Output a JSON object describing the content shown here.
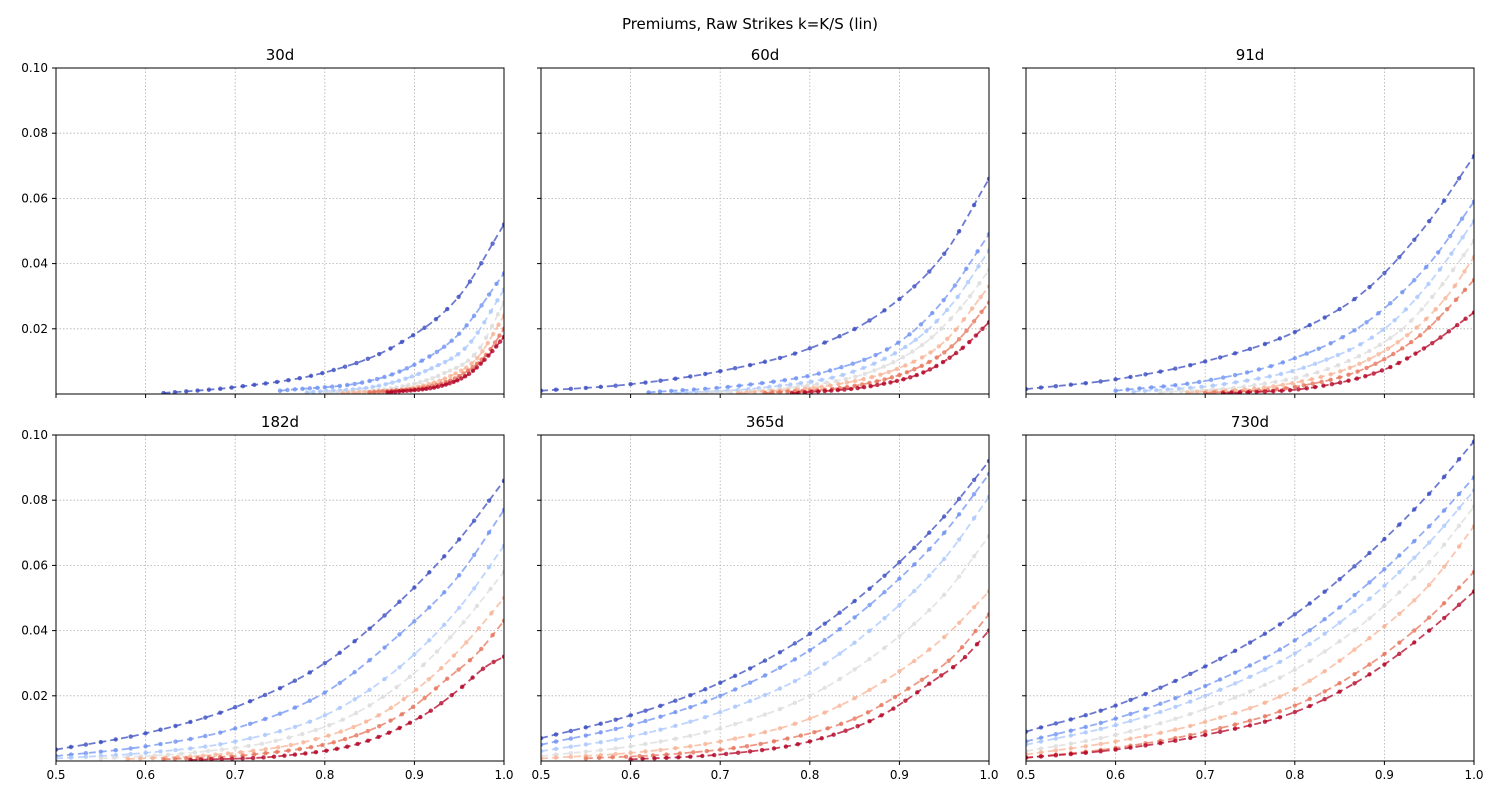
{
  "figure": {
    "title": "Premiums, Raw Strikes k=K/S (lin)"
  },
  "chart_data": {
    "type": "line",
    "x_ticks": [
      "0.5",
      "0.6",
      "0.7",
      "0.8",
      "0.9",
      "1.0"
    ],
    "y_ticks": [
      "0.02",
      "0.04",
      "0.06",
      "0.08",
      "0.10"
    ],
    "xlim": [
      0.5,
      1.0
    ],
    "ylim": [
      0.0,
      0.1
    ],
    "grid": true,
    "line_style": "dashed",
    "marker": "dot",
    "colormap": [
      "#3b4cc0",
      "#6f92f3",
      "#aac7fd",
      "#dddcdc",
      "#f7b396",
      "#e7745b",
      "#b40426"
    ],
    "panels": [
      {
        "title": "30d",
        "curves": [
          {
            "x": [
              0.62,
              0.7,
              0.8,
              0.88,
              0.95,
              1.0
            ],
            "y": [
              0.0003,
              0.0021,
              0.0066,
              0.015,
              0.03,
              0.052
            ]
          },
          {
            "x": [
              0.75,
              0.85,
              0.9,
              0.95,
              1.0
            ],
            "y": [
              0.001,
              0.004,
              0.009,
              0.0185,
              0.037
            ]
          },
          {
            "x": [
              0.78,
              0.86,
              0.92,
              0.96,
              1.0
            ],
            "y": [
              0.0005,
              0.0025,
              0.008,
              0.015,
              0.032
            ]
          },
          {
            "x": [
              0.8,
              0.88,
              0.93,
              0.97,
              1.0
            ],
            "y": [
              0.0003,
              0.002,
              0.006,
              0.013,
              0.028
            ]
          },
          {
            "x": [
              0.82,
              0.9,
              0.94,
              0.97,
              1.0
            ],
            "y": [
              0.0002,
              0.002,
              0.0055,
              0.011,
              0.024
            ]
          },
          {
            "x": [
              0.85,
              0.92,
              0.95,
              0.98,
              1.0
            ],
            "y": [
              0.0005,
              0.0025,
              0.0055,
              0.012,
              0.02
            ]
          },
          {
            "x": [
              0.87,
              0.93,
              0.96,
              0.98,
              1.0
            ],
            "y": [
              0.0005,
              0.0025,
              0.006,
              0.011,
              0.0175
            ]
          }
        ]
      },
      {
        "title": "60d",
        "curves": [
          {
            "x": [
              0.5,
              0.6,
              0.7,
              0.8,
              0.88,
              0.95,
              1.0
            ],
            "y": [
              0.001,
              0.003,
              0.007,
              0.014,
              0.025,
              0.043,
              0.066
            ]
          },
          {
            "x": [
              0.62,
              0.72,
              0.82,
              0.9,
              0.95,
              1.0
            ],
            "y": [
              0.0005,
              0.0025,
              0.007,
              0.016,
              0.029,
              0.049
            ]
          },
          {
            "x": [
              0.65,
              0.75,
              0.85,
              0.92,
              0.96,
              1.0
            ],
            "y": [
              0.0003,
              0.002,
              0.007,
              0.017,
              0.028,
              0.044
            ]
          },
          {
            "x": [
              0.68,
              0.78,
              0.87,
              0.93,
              0.97,
              1.0
            ],
            "y": [
              0.0003,
              0.002,
              0.007,
              0.016,
              0.027,
              0.038
            ]
          },
          {
            "x": [
              0.72,
              0.82,
              0.9,
              0.95,
              1.0
            ],
            "y": [
              0.0003,
              0.0025,
              0.008,
              0.016,
              0.033
            ]
          },
          {
            "x": [
              0.75,
              0.85,
              0.92,
              0.96,
              1.0
            ],
            "y": [
              0.0003,
              0.0025,
              0.008,
              0.015,
              0.028
            ]
          },
          {
            "x": [
              0.78,
              0.87,
              0.93,
              0.97,
              1.0
            ],
            "y": [
              0.0002,
              0.0025,
              0.007,
              0.014,
              0.022
            ]
          }
        ]
      },
      {
        "title": "91d",
        "curves": [
          {
            "x": [
              0.5,
              0.6,
              0.7,
              0.8,
              0.88,
              0.95,
              1.0
            ],
            "y": [
              0.0015,
              0.0045,
              0.01,
              0.019,
              0.032,
              0.053,
              0.073
            ]
          },
          {
            "x": [
              0.6,
              0.7,
              0.8,
              0.88,
              0.95,
              1.0
            ],
            "y": [
              0.001,
              0.004,
              0.011,
              0.022,
              0.04,
              0.059
            ]
          },
          {
            "x": [
              0.62,
              0.72,
              0.82,
              0.9,
              0.95,
              1.0
            ],
            "y": [
              0.0007,
              0.003,
              0.009,
              0.02,
              0.034,
              0.053
            ]
          },
          {
            "x": [
              0.65,
              0.75,
              0.85,
              0.92,
              0.96,
              1.0
            ],
            "y": [
              0.0005,
              0.0025,
              0.009,
              0.02,
              0.032,
              0.047
            ]
          },
          {
            "x": [
              0.68,
              0.78,
              0.87,
              0.93,
              0.97,
              1.0
            ],
            "y": [
              0.0004,
              0.0025,
              0.009,
              0.019,
              0.03,
              0.042
            ]
          },
          {
            "x": [
              0.7,
              0.8,
              0.88,
              0.94,
              0.97,
              1.0
            ],
            "y": [
              0.0003,
              0.0022,
              0.008,
              0.018,
              0.026,
              0.035
            ]
          },
          {
            "x": [
              0.72,
              0.82,
              0.9,
              0.95,
              1.0
            ],
            "y": [
              0.0002,
              0.002,
              0.0075,
              0.015,
              0.025
            ]
          }
        ]
      },
      {
        "title": "182d",
        "curves": [
          {
            "x": [
              0.5,
              0.6,
              0.7,
              0.8,
              0.88,
              0.95,
              1.0
            ],
            "y": [
              0.0035,
              0.0085,
              0.0165,
              0.03,
              0.048,
              0.068,
              0.086
            ]
          },
          {
            "x": [
              0.5,
              0.6,
              0.7,
              0.8,
              0.88,
              0.95,
              1.0
            ],
            "y": [
              0.0015,
              0.0045,
              0.01,
              0.021,
              0.038,
              0.057,
              0.077
            ]
          },
          {
            "x": [
              0.5,
              0.6,
              0.7,
              0.8,
              0.88,
              0.95,
              1.0
            ],
            "y": [
              0.0008,
              0.0025,
              0.006,
              0.014,
              0.028,
              0.047,
              0.066
            ]
          },
          {
            "x": [
              0.55,
              0.65,
              0.75,
              0.83,
              0.9,
              0.95,
              1.0
            ],
            "y": [
              0.0008,
              0.0025,
              0.0065,
              0.014,
              0.027,
              0.041,
              0.058
            ]
          },
          {
            "x": [
              0.58,
              0.68,
              0.78,
              0.86,
              0.92,
              0.96,
              1.0
            ],
            "y": [
              0.0006,
              0.002,
              0.006,
              0.014,
              0.026,
              0.037,
              0.05
            ]
          },
          {
            "x": [
              0.62,
              0.72,
              0.82,
              0.89,
              0.94,
              0.97,
              1.0
            ],
            "y": [
              0.0005,
              0.002,
              0.0065,
              0.015,
              0.026,
              0.033,
              0.043
            ]
          },
          {
            "x": [
              0.65,
              0.75,
              0.84,
              0.91,
              0.95,
              0.98,
              1.0
            ],
            "y": [
              0.0003,
              0.0015,
              0.0055,
              0.014,
              0.022,
              0.029,
              0.032
            ]
          }
        ]
      },
      {
        "title": "365d",
        "curves": [
          {
            "x": [
              0.5,
              0.6,
              0.7,
              0.8,
              0.88,
              0.95,
              1.0
            ],
            "y": [
              0.007,
              0.014,
              0.024,
              0.039,
              0.056,
              0.075,
              0.092
            ]
          },
          {
            "x": [
              0.5,
              0.6,
              0.7,
              0.8,
              0.88,
              0.95,
              1.0
            ],
            "y": [
              0.005,
              0.011,
              0.02,
              0.034,
              0.051,
              0.07,
              0.088
            ]
          },
          {
            "x": [
              0.5,
              0.6,
              0.7,
              0.8,
              0.88,
              0.95,
              1.0
            ],
            "y": [
              0.003,
              0.0075,
              0.015,
              0.027,
              0.043,
              0.062,
              0.081
            ]
          },
          {
            "x": [
              0.5,
              0.6,
              0.7,
              0.8,
              0.88,
              0.95,
              1.0
            ],
            "y": [
              0.0015,
              0.0045,
              0.01,
              0.02,
              0.034,
              0.051,
              0.069
            ]
          },
          {
            "x": [
              0.5,
              0.6,
              0.7,
              0.8,
              0.88,
              0.95,
              1.0
            ],
            "y": [
              0.0008,
              0.0025,
              0.006,
              0.013,
              0.024,
              0.038,
              0.052
            ]
          },
          {
            "x": [
              0.55,
              0.65,
              0.75,
              0.85,
              0.92,
              0.96,
              1.0
            ],
            "y": [
              0.0008,
              0.0022,
              0.0055,
              0.013,
              0.024,
              0.032,
              0.045
            ]
          },
          {
            "x": [
              0.6,
              0.7,
              0.8,
              0.88,
              0.94,
              0.97,
              1.0
            ],
            "y": [
              0.0005,
              0.002,
              0.006,
              0.014,
              0.025,
              0.031,
              0.04
            ]
          }
        ]
      },
      {
        "title": "730d",
        "curves": [
          {
            "x": [
              0.5,
              0.6,
              0.7,
              0.8,
              0.88,
              0.95,
              1.0
            ],
            "y": [
              0.009,
              0.017,
              0.029,
              0.045,
              0.063,
              0.082,
              0.098
            ]
          },
          {
            "x": [
              0.5,
              0.6,
              0.7,
              0.8,
              0.88,
              0.95,
              1.0
            ],
            "y": [
              0.006,
              0.013,
              0.023,
              0.037,
              0.054,
              0.072,
              0.087
            ]
          },
          {
            "x": [
              0.5,
              0.6,
              0.7,
              0.8,
              0.88,
              0.95,
              1.0
            ],
            "y": [
              0.005,
              0.011,
              0.02,
              0.033,
              0.049,
              0.067,
              0.083
            ]
          },
          {
            "x": [
              0.5,
              0.6,
              0.7,
              0.8,
              0.88,
              0.95,
              1.0
            ],
            "y": [
              0.003,
              0.008,
              0.016,
              0.028,
              0.043,
              0.061,
              0.078
            ]
          },
          {
            "x": [
              0.5,
              0.6,
              0.7,
              0.8,
              0.88,
              0.95,
              1.0
            ],
            "y": [
              0.002,
              0.006,
              0.012,
              0.022,
              0.037,
              0.054,
              0.072
            ]
          },
          {
            "x": [
              0.5,
              0.6,
              0.7,
              0.8,
              0.88,
              0.95,
              1.0
            ],
            "y": [
              0.001,
              0.004,
              0.009,
              0.017,
              0.029,
              0.044,
              0.058
            ]
          },
          {
            "x": [
              0.5,
              0.6,
              0.7,
              0.8,
              0.88,
              0.95,
              1.0
            ],
            "y": [
              0.001,
              0.0035,
              0.008,
              0.015,
              0.026,
              0.04,
              0.052
            ]
          }
        ]
      }
    ]
  }
}
